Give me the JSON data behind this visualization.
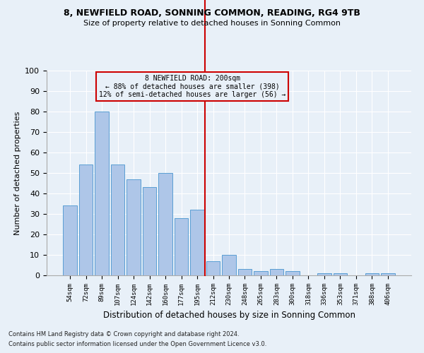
{
  "title1": "8, NEWFIELD ROAD, SONNING COMMON, READING, RG4 9TB",
  "title2": "Size of property relative to detached houses in Sonning Common",
  "xlabel": "Distribution of detached houses by size in Sonning Common",
  "ylabel": "Number of detached properties",
  "footer1": "Contains HM Land Registry data © Crown copyright and database right 2024.",
  "footer2": "Contains public sector information licensed under the Open Government Licence v3.0.",
  "annotation_line1": "8 NEWFIELD ROAD: 200sqm",
  "annotation_line2": "← 88% of detached houses are smaller (398)",
  "annotation_line3": "12% of semi-detached houses are larger (56) →",
  "bar_labels": [
    "54sqm",
    "72sqm",
    "89sqm",
    "107sqm",
    "124sqm",
    "142sqm",
    "160sqm",
    "177sqm",
    "195sqm",
    "212sqm",
    "230sqm",
    "248sqm",
    "265sqm",
    "283sqm",
    "300sqm",
    "318sqm",
    "336sqm",
    "353sqm",
    "371sqm",
    "388sqm",
    "406sqm"
  ],
  "bar_values": [
    34,
    54,
    80,
    54,
    47,
    43,
    50,
    28,
    32,
    7,
    10,
    3,
    2,
    3,
    2,
    0,
    1,
    1,
    0,
    1,
    1
  ],
  "highlight_index": 8,
  "bar_color": "#aec6e8",
  "bar_edge_color": "#5a9fd4",
  "highlight_line_color": "#cc0000",
  "background_color": "#e8f0f8",
  "ylim": [
    0,
    100
  ],
  "yticks": [
    0,
    10,
    20,
    30,
    40,
    50,
    60,
    70,
    80,
    90,
    100
  ]
}
